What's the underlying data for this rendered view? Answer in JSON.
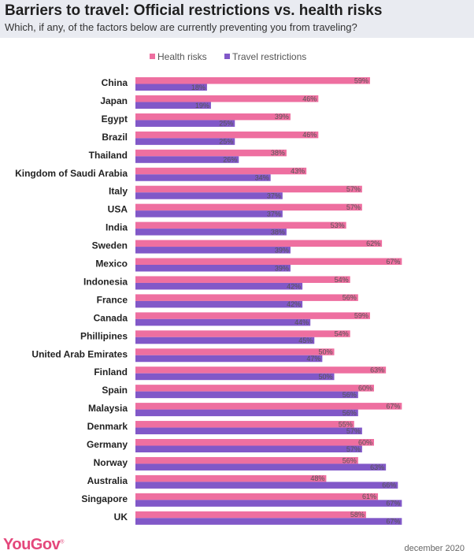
{
  "header": {
    "title": "Barriers to travel: Official restrictions vs. health risks",
    "subtitle": "Which, if any, of the factors below are currently preventing you from traveling?"
  },
  "brand": {
    "logo_text": "YouGov",
    "logo_mark": "®"
  },
  "footer": {
    "date": "december 2020"
  },
  "colors": {
    "health": "#ee6fa0",
    "travel": "#8158c8",
    "header_bg": "#e9ebf1"
  },
  "chart_data": {
    "type": "bar",
    "orientation": "horizontal",
    "title": "Barriers to travel: Official restrictions vs. health risks",
    "subtitle": "Which, if any, of the factors below are currently preventing you from traveling?",
    "value_format": "percent",
    "xlim": [
      0,
      67
    ],
    "legend_position": "top",
    "categories": [
      "China",
      "Japan",
      "Egypt",
      "Brazil",
      "Thailand",
      "Kingdom of Saudi Arabia",
      "Italy",
      "USA",
      "India",
      "Sweden",
      "Mexico",
      "Indonesia",
      "France",
      "Canada",
      "Phillipines",
      "United Arab Emirates",
      "Finland",
      "Spain",
      "Malaysia",
      "Denmark",
      "Germany",
      "Norway",
      "Australia",
      "Singapore",
      "UK"
    ],
    "series": [
      {
        "name": "Health risks",
        "color": "#ee6fa0",
        "values": [
          59,
          46,
          39,
          46,
          38,
          43,
          57,
          57,
          53,
          62,
          67,
          54,
          56,
          59,
          54,
          50,
          63,
          60,
          67,
          55,
          60,
          56,
          48,
          61,
          58
        ]
      },
      {
        "name": "Travel restrictions",
        "color": "#8158c8",
        "values": [
          18,
          19,
          25,
          25,
          26,
          34,
          37,
          37,
          38,
          39,
          39,
          42,
          42,
          44,
          45,
          47,
          50,
          56,
          56,
          57,
          57,
          63,
          66,
          67,
          67
        ]
      }
    ]
  }
}
